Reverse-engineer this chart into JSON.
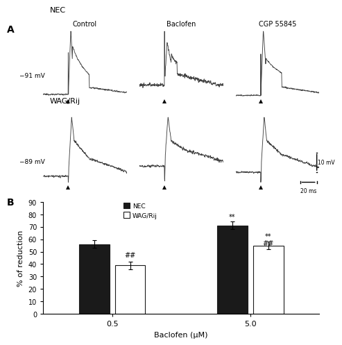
{
  "panel_A_label": "A",
  "panel_B_label": "B",
  "nec_label": "NEC",
  "wag_label": "WAG/Rij",
  "col_labels": [
    "Control",
    "Baclofen",
    "CGP 55845"
  ],
  "nec_vm": "−91 mV",
  "wag_vm": "−89 mV",
  "scale_bar_v": "10 mV",
  "scale_bar_t": "20 ms",
  "bar_categories": [
    "0.5",
    "5.0"
  ],
  "xlabel": "Baclofen (μM)",
  "ylabel": "% of reduction",
  "yticks": [
    0,
    10,
    20,
    30,
    40,
    50,
    60,
    70,
    80,
    90
  ],
  "nec_values": [
    56,
    71
  ],
  "wag_values": [
    39,
    55
  ],
  "nec_errors": [
    3,
    3
  ],
  "wag_errors": [
    3,
    3
  ],
  "nec_color": "#1a1a1a",
  "wag_color": "#ffffff",
  "bar_edge_color": "#1a1a1a",
  "legend_nec": "NEC",
  "legend_wag": "WAG/Rij",
  "background": "#ffffff",
  "trace_color": "#444444"
}
